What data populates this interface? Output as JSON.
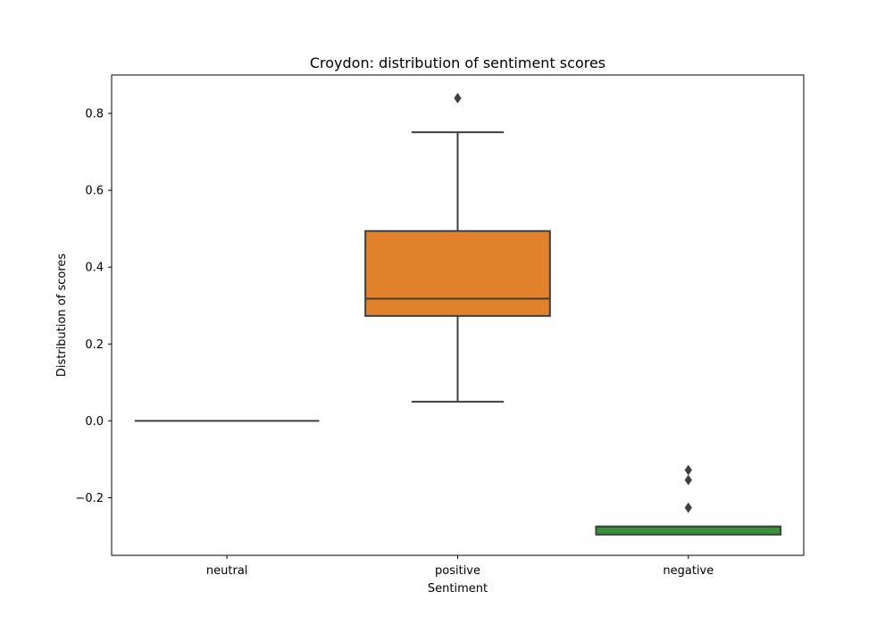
{
  "chart_data": {
    "type": "box",
    "title": "Croydon: distribution of sentiment scores",
    "xlabel": "Sentiment",
    "ylabel": "Distribution of scores",
    "ylim": [
      -0.35,
      0.9
    ],
    "yticks": [
      -0.2,
      0.0,
      0.2,
      0.4,
      0.6,
      0.8
    ],
    "ytick_labels": [
      "−0.2",
      "0.0",
      "0.2",
      "0.4",
      "0.6",
      "0.8"
    ],
    "categories": [
      "neutral",
      "positive",
      "negative"
    ],
    "series": [
      {
        "name": "neutral",
        "color": "#3274a1",
        "whisker_low": 0.0,
        "q1": 0.0,
        "median": 0.0,
        "q3": 0.0,
        "whisker_high": 0.0,
        "outliers": []
      },
      {
        "name": "positive",
        "color": "#e1812c",
        "whisker_low": 0.05,
        "q1": 0.273,
        "median": 0.318,
        "q3": 0.494,
        "whisker_high": 0.751,
        "outliers": [
          0.84
        ]
      },
      {
        "name": "negative",
        "color": "#3a923a",
        "whisker_low": -0.296,
        "q1": -0.296,
        "median": -0.275,
        "q3": -0.275,
        "whisker_high": -0.275,
        "outliers": [
          -0.128,
          -0.154,
          -0.226
        ]
      }
    ]
  }
}
